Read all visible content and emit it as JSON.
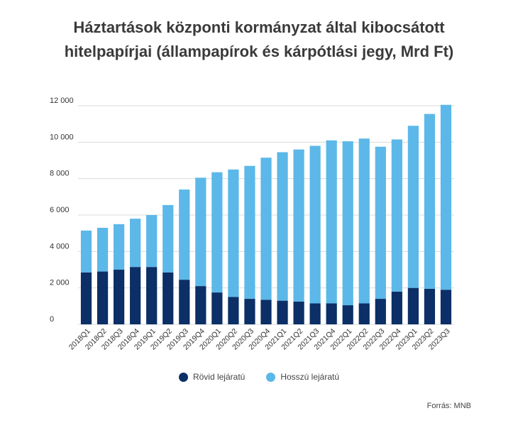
{
  "title_line1": "Háztartások központi kormányzat által kibocsátott",
  "title_line2": "hitelpapírjai (állampapírok és kárpótlási jegy, Mrd Ft)",
  "source": "Forrás: MNB",
  "colors": {
    "short": "#0b2f66",
    "long": "#5cb8e8",
    "grid": "#d9d9d9"
  },
  "chart_data": {
    "type": "bar",
    "stacked": true,
    "title": "Háztartások központi kormányzat által kibocsátott hitelpapírjai (állampapírok és kárpótlási jegy, Mrd Ft)",
    "xlabel": "",
    "ylabel": "",
    "ylim": [
      0,
      12000
    ],
    "yticks": [
      0,
      2000,
      4000,
      6000,
      8000,
      10000,
      12000
    ],
    "ytick_labels": [
      "0",
      "2 000",
      "4 000",
      "6 000",
      "8 000",
      "10 000",
      "12 000"
    ],
    "grid": true,
    "legend_position": "bottom",
    "categories": [
      "2018Q1",
      "2018Q2",
      "2018Q3",
      "2018Q4",
      "2019Q1",
      "2019Q2",
      "2019Q3",
      "2019Q4",
      "2020Q1",
      "2020Q2",
      "2020Q3",
      "2020Q4",
      "2021Q1",
      "2021Q2",
      "2021Q3",
      "2021Q4",
      "2022Q1",
      "2022Q2",
      "2022Q3",
      "2022Q4",
      "2023Q1",
      "2023Q2",
      "2023Q3"
    ],
    "series": [
      {
        "name": "Rövid lejáratú",
        "values": [
          2850,
          2900,
          3000,
          3150,
          3150,
          2850,
          2450,
          2100,
          1750,
          1500,
          1400,
          1350,
          1300,
          1250,
          1150,
          1150,
          1050,
          1150,
          1400,
          1800,
          2000,
          1950,
          1900
        ]
      },
      {
        "name": "Hosszú lejáratú",
        "values": [
          2300,
          2400,
          2500,
          2650,
          2850,
          3700,
          4950,
          5950,
          6600,
          7000,
          7300,
          7800,
          8150,
          8350,
          8650,
          8950,
          9000,
          9050,
          8350,
          8350,
          8900,
          9600,
          10150
        ]
      }
    ]
  }
}
